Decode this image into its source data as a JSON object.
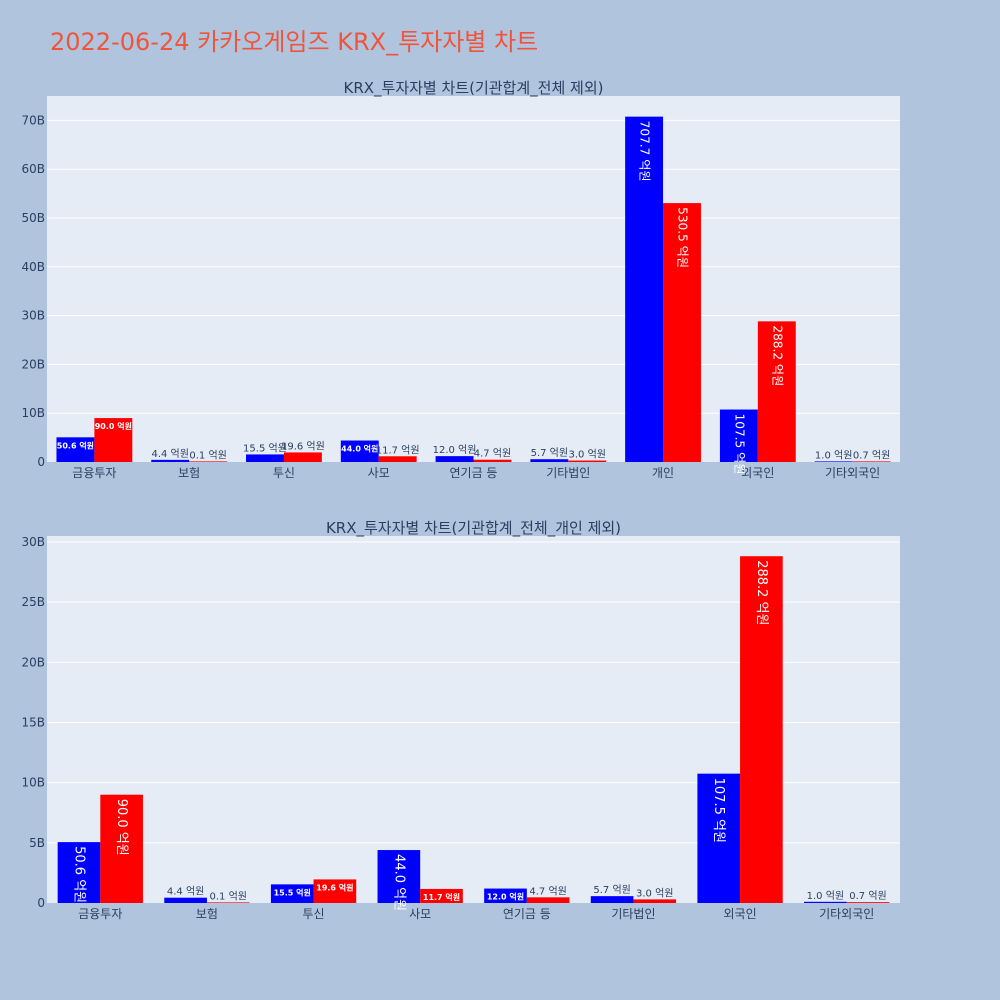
{
  "page_title": "2022-06-24 카카오게임즈 KRX_투자자별 차트",
  "colors": {
    "buy": "#0000ff",
    "sell": "#ff0000",
    "plot_bg": "#e5ecf6",
    "page_bg": "#b0c4de",
    "title": "#ef553b"
  },
  "chart_data": [
    {
      "type": "bar",
      "title": "KRX_투자자별 차트(기관합계_전체 제외)",
      "categories": [
        "금융투자",
        "보험",
        "투신",
        "사모",
        "연기금 등",
        "기타법인",
        "개인",
        "외국인",
        "기타외국인"
      ],
      "series": [
        {
          "values": [
            5.06,
            0.44,
            1.55,
            4.4,
            1.2,
            0.57,
            70.77,
            10.75,
            0.1
          ],
          "labels": [
            "50.6 억원",
            "4.4 억원",
            "15.5 억원",
            "44.0 억원",
            "12.0 억원",
            "5.7 억원",
            "707.7 억원",
            "107.5 억원",
            "1.0 억원"
          ]
        },
        {
          "values": [
            9.0,
            0.01,
            1.96,
            1.17,
            0.47,
            0.3,
            53.05,
            28.82,
            0.07
          ],
          "labels": [
            "90.0 억원",
            "0.1 억원",
            "19.6 억원",
            "11.7 억원",
            "4.7 억원",
            "3.0 억원",
            "530.5 억원",
            "288.2 억원",
            "0.7 억원"
          ]
        }
      ],
      "ylim": [
        0,
        75
      ],
      "yticks": [
        0,
        10,
        20,
        30,
        40,
        50,
        60,
        70
      ],
      "ytick_labels": [
        "0",
        "10B",
        "20B",
        "30B",
        "40B",
        "50B",
        "60B",
        "70B"
      ],
      "grid": true
    },
    {
      "type": "bar",
      "title": "KRX_투자자별 차트(기관합계_전체_개인 제외)",
      "categories": [
        "금융투자",
        "보험",
        "투신",
        "사모",
        "연기금 등",
        "기타법인",
        "외국인",
        "기타외국인"
      ],
      "series": [
        {
          "values": [
            5.06,
            0.44,
            1.55,
            4.4,
            1.2,
            0.57,
            10.75,
            0.1
          ],
          "labels": [
            "50.6 억원",
            "4.4 억원",
            "15.5 억원",
            "44.0 억원",
            "12.0 억원",
            "5.7 억원",
            "107.5 억원",
            "1.0 억원"
          ]
        },
        {
          "values": [
            9.0,
            0.01,
            1.96,
            1.17,
            0.47,
            0.3,
            28.82,
            0.07
          ],
          "labels": [
            "90.0 억원",
            "0.1 억원",
            "19.6 억원",
            "11.7 억원",
            "4.7 억원",
            "3.0 억원",
            "288.2 억원",
            "0.7 억원"
          ]
        }
      ],
      "ylim": [
        0,
        30.5
      ],
      "yticks": [
        0,
        5,
        10,
        15,
        20,
        25,
        30
      ],
      "ytick_labels": [
        "0",
        "5B",
        "10B",
        "15B",
        "20B",
        "25B",
        "30B"
      ],
      "grid": true
    }
  ]
}
